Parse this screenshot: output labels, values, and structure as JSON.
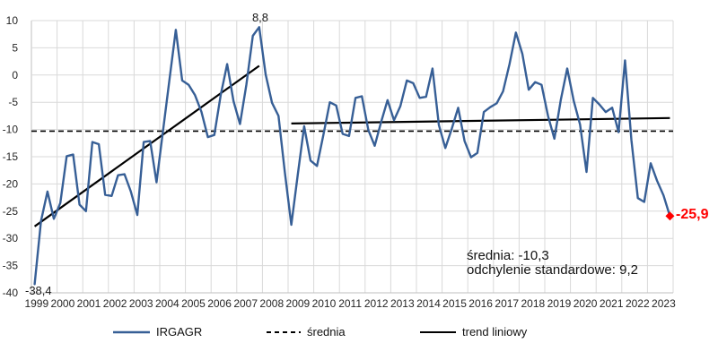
{
  "chart_data": {
    "type": "line",
    "title": "",
    "x_start_year": 1999,
    "points_per_year": 4,
    "categories_years": [
      "1999",
      "2000",
      "2001",
      "2002",
      "2003",
      "2004",
      "2005",
      "2006",
      "2007",
      "2008",
      "2009",
      "2010",
      "2011",
      "2012",
      "2013",
      "2014",
      "2015",
      "2016",
      "2017",
      "2018",
      "2019",
      "2020",
      "2021",
      "2022",
      "2023"
    ],
    "ylim": [
      -40,
      10
    ],
    "yticks": [
      10,
      5,
      0,
      -5,
      -10,
      -15,
      -20,
      -25,
      -30,
      -35,
      -40
    ],
    "grid": true,
    "legend_position": "bottom",
    "series": [
      {
        "name": "IRGAGR",
        "color": "#375f96",
        "values": [
          -38.4,
          -26.8,
          -21.4,
          -26.4,
          -23.5,
          -14.9,
          -14.6,
          -23.8,
          -25.0,
          -12.3,
          -12.7,
          -22.0,
          -22.2,
          -18.4,
          -18.2,
          -21.4,
          -25.7,
          -12.3,
          -12.1,
          -19.7,
          -10.3,
          -1.0,
          8.3,
          -1.0,
          -1.8,
          -3.7,
          -6.8,
          -11.4,
          -11.0,
          -3.7,
          2.0,
          -4.8,
          -9.0,
          -1.8,
          7.2,
          8.8,
          0.1,
          -5.1,
          -7.5,
          -17.9,
          -27.5,
          -18.4,
          -9.4,
          -15.7,
          -16.7,
          -11.0,
          -5.0,
          -5.6,
          -10.8,
          -11.2,
          -4.2,
          -3.9,
          -10.1,
          -13.0,
          -8.6,
          -4.6,
          -8.3,
          -5.7,
          -1.0,
          -1.5,
          -4.2,
          -4.0,
          1.2,
          -9.2,
          -13.4,
          -9.9,
          -6.0,
          -12.1,
          -15.1,
          -14.3,
          -6.8,
          -5.9,
          -5.2,
          -3.0,
          2.0,
          7.8,
          3.9,
          -2.7,
          -1.3,
          -1.8,
          -7.5,
          -11.7,
          -4.5,
          1.2,
          -4.7,
          -9.1,
          -17.8,
          -4.2,
          -5.4,
          -6.8,
          -6.0,
          -10.5,
          2.7,
          -11.9,
          -22.6,
          -23.3,
          -16.2,
          -19.4,
          -22.1,
          -25.9
        ]
      }
    ],
    "mean_line": {
      "value": -10.3,
      "style": "dashed",
      "color": "#000000"
    },
    "trend_lines": {
      "color": "#000000",
      "segments": [
        {
          "from_index": 0,
          "to_index": 35,
          "from_value": -27.8,
          "to_value": 1.7
        },
        {
          "from_index": 40,
          "to_index": 99,
          "from_value": -8.9,
          "to_value": -7.9
        }
      ]
    },
    "annotations": {
      "start_label": "-38,4",
      "peak_label": "8,8",
      "end_label": "-25,9",
      "end_label_color": "#ff0000",
      "end_marker": "red-diamond",
      "stats_line1": "średnia: -10,3",
      "stats_line2": "odchylenie standardowe: 9,2"
    },
    "legend": [
      {
        "label": "IRGAGR",
        "sample": "solid-blue-line"
      },
      {
        "label": "średnia",
        "sample": "dashed-black-line"
      },
      {
        "label": "trend liniowy",
        "sample": "solid-black-line"
      }
    ],
    "colors": {
      "series_blue": "#375f96",
      "annotation_red": "#ff0000",
      "gridline": "#d9d9d9",
      "axis_edge": "#bfbfbf",
      "text": "#262626"
    }
  }
}
